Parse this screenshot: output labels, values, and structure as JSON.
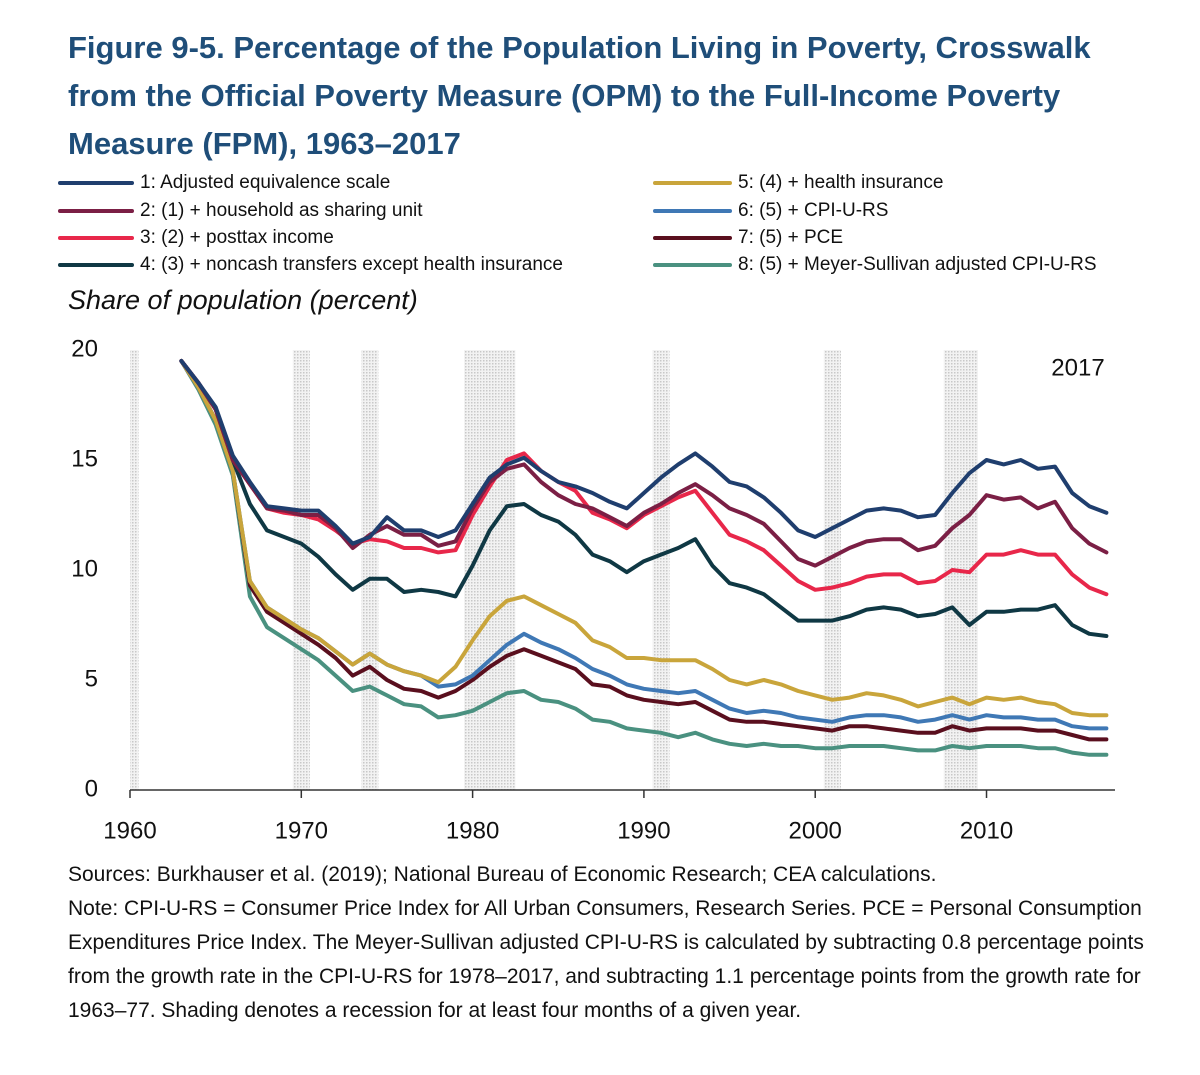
{
  "chart_data": {
    "type": "line",
    "title": "Figure 9-5. Percentage of the Population Living in Poverty, Crosswalk from the Official Poverty Measure (OPM) to the Full-Income Poverty Measure (FPM), 1963–2017",
    "y_label": "Share of population (percent)",
    "annotation": "2017",
    "sources": "Sources: Burkhauser et al. (2019); National Bureau of Economic Research; CEA calculations.",
    "note": "Note: CPI-U-RS = Consumer Price Index for All Urban Consumers, Research Series. PCE = Personal Consumption Expenditures Price Index. The Meyer-Sullivan adjusted CPI-U-RS is calculated by subtracting 0.8 percentage points from the growth rate in the CPI-U-RS for 1978–2017, and subtracting 1.1 percentage points from the growth rate for 1963–77. Shading denotes a recession for at least four months of a given year.",
    "legend": "top",
    "grid": false,
    "xlim": [
      1960,
      2017.5
    ],
    "xticks": [
      1960,
      1970,
      1980,
      1990,
      2000,
      2010
    ],
    "ylim": [
      0,
      20
    ],
    "yticks": [
      0,
      5,
      10,
      15,
      20
    ],
    "recession_years": [
      1960,
      1970,
      1974,
      1980,
      1981,
      1982,
      1991,
      2001,
      2008,
      2009
    ],
    "x": [
      1963,
      1964,
      1965,
      1966,
      1967,
      1968,
      1969,
      1970,
      1971,
      1972,
      1973,
      1974,
      1975,
      1976,
      1977,
      1978,
      1979,
      1980,
      1981,
      1982,
      1983,
      1984,
      1985,
      1986,
      1987,
      1988,
      1989,
      1990,
      1991,
      1992,
      1993,
      1994,
      1995,
      1996,
      1997,
      1998,
      1999,
      2000,
      2001,
      2002,
      2003,
      2004,
      2005,
      2006,
      2007,
      2008,
      2009,
      2010,
      2011,
      2012,
      2013,
      2014,
      2015,
      2016,
      2017
    ],
    "series": [
      {
        "name": "1: Adjusted equivalence scale",
        "color": "#1f3e6e",
        "values": [
          19.5,
          18.5,
          17.4,
          15.2,
          14.0,
          12.9,
          12.8,
          12.7,
          12.7,
          12.0,
          11.2,
          11.5,
          12.4,
          11.8,
          11.8,
          11.5,
          11.8,
          13.0,
          14.2,
          14.8,
          15.1,
          14.5,
          14.0,
          13.8,
          13.5,
          13.1,
          12.8,
          13.5,
          14.2,
          14.8,
          15.3,
          14.7,
          14.0,
          13.8,
          13.3,
          12.6,
          11.8,
          11.5,
          11.9,
          12.3,
          12.7,
          12.8,
          12.7,
          12.4,
          12.5,
          13.5,
          14.4,
          15.0,
          14.8,
          15.0,
          14.6,
          14.7,
          13.5,
          12.9,
          12.6
        ]
      },
      {
        "name": "2: (1) + household as sharing unit",
        "color": "#7b1f45",
        "values": [
          19.5,
          18.5,
          17.3,
          15.0,
          13.9,
          12.8,
          12.7,
          12.5,
          12.5,
          11.9,
          11.0,
          11.6,
          12.0,
          11.6,
          11.6,
          11.1,
          11.3,
          12.8,
          14.0,
          14.6,
          14.8,
          14.0,
          13.4,
          13.0,
          12.8,
          12.4,
          12.0,
          12.6,
          13.0,
          13.5,
          13.9,
          13.4,
          12.8,
          12.5,
          12.1,
          11.3,
          10.5,
          10.2,
          10.6,
          11.0,
          11.3,
          11.4,
          11.4,
          10.9,
          11.1,
          11.9,
          12.5,
          13.4,
          13.2,
          13.3,
          12.8,
          13.1,
          11.9,
          11.2,
          10.8
        ]
      },
      {
        "name": "3: (2) + posttax income",
        "color": "#e8274a",
        "values": [
          19.5,
          18.5,
          17.3,
          15.0,
          13.9,
          12.8,
          12.6,
          12.5,
          12.3,
          11.8,
          11.2,
          11.4,
          11.3,
          11.0,
          11.0,
          10.8,
          10.9,
          12.5,
          13.8,
          15.0,
          15.3,
          14.5,
          14.0,
          13.6,
          12.6,
          12.3,
          11.9,
          12.5,
          12.9,
          13.3,
          13.6,
          12.6,
          11.6,
          11.3,
          10.9,
          10.2,
          9.5,
          9.1,
          9.2,
          9.4,
          9.7,
          9.8,
          9.8,
          9.4,
          9.5,
          10.0,
          9.9,
          10.7,
          10.7,
          10.9,
          10.7,
          10.7,
          9.8,
          9.2,
          8.9
        ]
      },
      {
        "name": "4: (3) + noncash transfers except health insurance",
        "color": "#0f3844",
        "values": [
          19.5,
          18.5,
          17.3,
          15.0,
          13.0,
          11.8,
          11.5,
          11.2,
          10.6,
          9.8,
          9.1,
          9.6,
          9.6,
          9.0,
          9.1,
          9.0,
          8.8,
          10.2,
          11.8,
          12.9,
          13.0,
          12.5,
          12.2,
          11.6,
          10.7,
          10.4,
          9.9,
          10.4,
          10.7,
          11.0,
          11.4,
          10.2,
          9.4,
          9.2,
          8.9,
          8.3,
          7.7,
          7.7,
          7.7,
          7.9,
          8.2,
          8.3,
          8.2,
          7.9,
          8.0,
          8.3,
          7.5,
          8.1,
          8.1,
          8.2,
          8.2,
          8.4,
          7.5,
          7.1,
          7.0
        ]
      },
      {
        "name": "5: (4) + health insurance",
        "color": "#c9a53b",
        "values": [
          19.5,
          18.3,
          16.8,
          14.5,
          9.5,
          8.3,
          7.8,
          7.3,
          6.9,
          6.3,
          5.7,
          6.2,
          5.7,
          5.4,
          5.2,
          4.9,
          5.6,
          6.8,
          7.9,
          8.6,
          8.8,
          8.4,
          8.0,
          7.6,
          6.8,
          6.5,
          6.0,
          6.0,
          5.9,
          5.9,
          5.9,
          5.5,
          5.0,
          4.8,
          5.0,
          4.8,
          4.5,
          4.3,
          4.1,
          4.2,
          4.4,
          4.3,
          4.1,
          3.8,
          4.0,
          4.2,
          3.9,
          4.2,
          4.1,
          4.2,
          4.0,
          3.9,
          3.5,
          3.4,
          3.4
        ]
      },
      {
        "name": "6: (5) + CPI-U-RS",
        "color": "#3f78b5",
        "values": [
          19.5,
          18.3,
          16.8,
          14.5,
          9.5,
          8.3,
          7.8,
          7.3,
          6.9,
          6.3,
          5.7,
          6.2,
          5.7,
          5.4,
          5.2,
          4.7,
          4.8,
          5.2,
          5.9,
          6.6,
          7.1,
          6.7,
          6.4,
          6.0,
          5.5,
          5.2,
          4.8,
          4.6,
          4.5,
          4.4,
          4.5,
          4.1,
          3.7,
          3.5,
          3.6,
          3.5,
          3.3,
          3.2,
          3.1,
          3.3,
          3.4,
          3.4,
          3.3,
          3.1,
          3.2,
          3.4,
          3.2,
          3.4,
          3.3,
          3.3,
          3.2,
          3.2,
          2.9,
          2.8,
          2.8
        ]
      },
      {
        "name": "7: (5) + PCE",
        "color": "#5a0f1e",
        "values": [
          19.5,
          18.3,
          16.8,
          14.5,
          9.3,
          8.1,
          7.6,
          7.1,
          6.6,
          6.0,
          5.2,
          5.6,
          5.0,
          4.6,
          4.5,
          4.2,
          4.5,
          5.0,
          5.6,
          6.1,
          6.4,
          6.1,
          5.8,
          5.5,
          4.8,
          4.7,
          4.3,
          4.1,
          4.0,
          3.9,
          4.0,
          3.6,
          3.2,
          3.1,
          3.1,
          3.0,
          2.9,
          2.8,
          2.7,
          2.9,
          2.9,
          2.8,
          2.7,
          2.6,
          2.6,
          2.9,
          2.7,
          2.8,
          2.8,
          2.8,
          2.7,
          2.7,
          2.5,
          2.3,
          2.3
        ]
      },
      {
        "name": "8: (5) + Meyer-Sullivan adjusted CPI-U-RS",
        "color": "#4a9180",
        "values": [
          19.5,
          18.2,
          16.6,
          14.3,
          8.8,
          7.4,
          6.9,
          6.4,
          5.9,
          5.2,
          4.5,
          4.7,
          4.3,
          3.9,
          3.8,
          3.3,
          3.4,
          3.6,
          4.0,
          4.4,
          4.5,
          4.1,
          4.0,
          3.7,
          3.2,
          3.1,
          2.8,
          2.7,
          2.6,
          2.4,
          2.6,
          2.3,
          2.1,
          2.0,
          2.1,
          2.0,
          2.0,
          1.9,
          1.9,
          2.0,
          2.0,
          2.0,
          1.9,
          1.8,
          1.8,
          2.0,
          1.9,
          2.0,
          2.0,
          2.0,
          1.9,
          1.9,
          1.7,
          1.6,
          1.6
        ]
      }
    ]
  }
}
